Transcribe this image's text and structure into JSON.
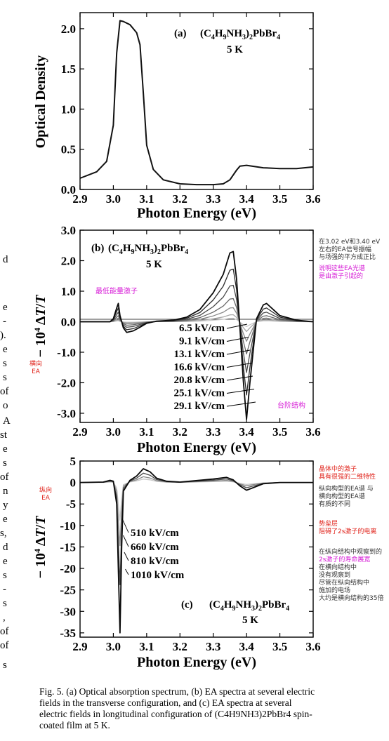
{
  "panel_a": {
    "label": "(a)",
    "compound": "(C4H9NH3)2PbBr4",
    "temperature": "5 K",
    "ylabel": "Optical Density",
    "xlabel": "Photon Energy (eV)",
    "xticks": [
      "2.9",
      "3.0",
      "3.1",
      "3.2",
      "3.3",
      "3.4",
      "3.5",
      "3.6"
    ],
    "yticks": [
      "0.0",
      "0.5",
      "1.0",
      "1.5",
      "2.0"
    ]
  },
  "panel_b": {
    "label": "(b)",
    "compound": "(C4H9NH3)2PbBr4",
    "temperature": "5 K",
    "ylabel": "− 10⁴ ΔT/T",
    "xlabel": "Photon Energy (eV)",
    "xticks": [
      "2.9",
      "3.0",
      "3.1",
      "3.2",
      "3.3",
      "3.4",
      "3.5",
      "3.6"
    ],
    "yticks": [
      "3.0",
      "2.0",
      "1.0",
      "0.0",
      "-1.0",
      "-2.0",
      "-3.0"
    ],
    "fields": [
      "6.5 kV/cm",
      "9.1 kV/cm",
      "13.1 kV/cm",
      "16.6 kV/cm",
      "20.8 kV/cm",
      "25.1 kV/cm",
      "29.1 kV/cm"
    ]
  },
  "panel_c": {
    "label": "(c)",
    "compound": "(C4H9NH3)2PbBr4",
    "temperature": "5 K",
    "ylabel": "− 10⁴ ΔT/T",
    "xlabel": "Photon Energy (eV)",
    "xticks": [
      "2.9",
      "3.0",
      "3.1",
      "3.2",
      "3.3",
      "3.4",
      "3.5",
      "3.6"
    ],
    "yticks": [
      "5",
      "0",
      "-5",
      "-10",
      "-15",
      "-20",
      "-25",
      "-30",
      "-35"
    ],
    "fields": [
      "510 kV/cm",
      "660 kV/cm",
      "810 kV/cm",
      "1010 kV/cm"
    ]
  },
  "annotations": {
    "lowest_exciton": "最低能量激子",
    "step_structure": "台阶结构",
    "transverse": [
      "横向",
      "EA"
    ],
    "longitudinal": [
      "纵向",
      "EA"
    ],
    "note1": [
      "在3.02 eV和3.40 eV",
      "左右的EA信号振幅",
      "与场强的平方成正比"
    ],
    "note2": [
      "说明这些EA光谱",
      "是由激子引起的"
    ],
    "note3": [
      "晶体中的激子",
      "具有很强的二维特性"
    ],
    "note4": [
      "纵向构型的EA谱 与",
      "横向构型的EA谱",
      "有质的不同"
    ],
    "note5": [
      "势垒层",
      "阻碍了2s激子的电离"
    ],
    "note6": [
      "在纵向结构中观察到的",
      "2s激子的寿命展宽",
      "在横向结构中",
      "没有观察到",
      "尽管在纵向结构中",
      "施加的电场",
      "大约是横向结构的35倍"
    ]
  },
  "margin_chars": [
    "d",
    "e",
    "-",
    ").",
    "e",
    "s",
    "s",
    "of",
    "o",
    "A",
    "st",
    "e",
    "s",
    "of",
    "n",
    "y",
    "e",
    "s,",
    "d",
    "e",
    "s",
    "-",
    "s",
    ",",
    "of",
    "of",
    "s"
  ],
  "caption": [
    "Fig. 5.   (a) Optical absorption spectrum, (b) EA spectra at several electric",
    "fields in the transverse configuration, and (c) EA spectra at several",
    "electric fields in longitudinal configuration of (C4H9NH3)2PbBr4 spin-",
    "coated film at 5 K."
  ],
  "chart_data": [
    {
      "type": "line",
      "title": "",
      "xlabel": "Photon Energy (eV)",
      "ylabel": "Optical Density",
      "xlim": [
        2.9,
        3.6
      ],
      "ylim": [
        0.0,
        2.2
      ],
      "series": [
        {
          "x": [
            2.9,
            2.95,
            2.98,
            3.0,
            3.01,
            3.02,
            3.03,
            3.05,
            3.07,
            3.08,
            3.09,
            3.1,
            3.12,
            3.15,
            3.2,
            3.25,
            3.3,
            3.33,
            3.35,
            3.37,
            3.38,
            3.4,
            3.45,
            3.5,
            3.55,
            3.6
          ],
          "y": [
            0.14,
            0.22,
            0.35,
            0.8,
            1.7,
            2.1,
            2.09,
            2.05,
            1.95,
            1.8,
            1.2,
            0.55,
            0.25,
            0.12,
            0.07,
            0.06,
            0.06,
            0.07,
            0.12,
            0.24,
            0.29,
            0.3,
            0.27,
            0.26,
            0.26,
            0.28
          ]
        }
      ]
    },
    {
      "type": "line",
      "title": "",
      "xlabel": "Photon Energy (eV)",
      "ylabel": "− 10⁴ ΔT/T",
      "xlim": [
        2.9,
        3.6
      ],
      "ylim": [
        -3.3,
        3.0
      ],
      "series": [
        {
          "name": "6.5 kV/cm",
          "scale": 0.05
        },
        {
          "name": "9.1 kV/cm",
          "scale": 0.1
        },
        {
          "name": "13.1 kV/cm",
          "scale": 0.2
        },
        {
          "name": "16.6 kV/cm",
          "scale": 0.33
        },
        {
          "name": "20.8 kV/cm",
          "scale": 0.52
        },
        {
          "name": "25.1 kV/cm",
          "scale": 0.75
        },
        {
          "name": "29.1 kV/cm",
          "scale": 1.0
        }
      ],
      "shape_x": [
        2.9,
        2.99,
        3.0,
        3.01,
        3.015,
        3.02,
        3.03,
        3.04,
        3.06,
        3.08,
        3.1,
        3.13,
        3.18,
        3.22,
        3.26,
        3.3,
        3.33,
        3.35,
        3.36,
        3.37,
        3.38,
        3.39,
        3.4,
        3.41,
        3.43,
        3.45,
        3.46,
        3.48,
        3.5,
        3.55,
        3.6
      ],
      "shape_y": [
        0.0,
        0.0,
        0.1,
        0.45,
        0.6,
        0.2,
        -0.2,
        -0.35,
        -0.3,
        -0.18,
        -0.05,
        0.02,
        0.05,
        0.15,
        0.4,
        0.95,
        1.55,
        2.25,
        2.3,
        1.4,
        -0.2,
        -1.9,
        -3.2,
        -2.0,
        0.1,
        0.55,
        0.6,
        0.4,
        0.2,
        0.05,
        0.0
      ]
    },
    {
      "type": "line",
      "title": "",
      "xlabel": "Photon Energy (eV)",
      "ylabel": "− 10⁴ ΔT/T",
      "xlim": [
        2.9,
        3.6
      ],
      "ylim": [
        -36,
        5
      ],
      "series": [
        {
          "name": "510 kV/cm",
          "scale": 0.25
        },
        {
          "name": "660 kV/cm",
          "scale": 0.42
        },
        {
          "name": "810 kV/cm",
          "scale": 0.68
        },
        {
          "name": "1010 kV/cm",
          "scale": 1.0
        }
      ],
      "shape_x": [
        2.9,
        2.97,
        2.99,
        3.0,
        3.01,
        3.015,
        3.02,
        3.025,
        3.03,
        3.05,
        3.07,
        3.09,
        3.11,
        3.13,
        3.16,
        3.2,
        3.3,
        3.34,
        3.36,
        3.38,
        3.4,
        3.42,
        3.45,
        3.5,
        3.6
      ],
      "shape_y": [
        0.0,
        0.1,
        0.5,
        0.3,
        -5.0,
        -20.0,
        -35.0,
        -15.0,
        -2.0,
        0.5,
        1.5,
        3.2,
        2.5,
        1.0,
        0.3,
        0.1,
        0.8,
        1.2,
        0.6,
        -0.8,
        -1.8,
        -1.2,
        -0.3,
        0.0,
        0.0
      ]
    }
  ]
}
